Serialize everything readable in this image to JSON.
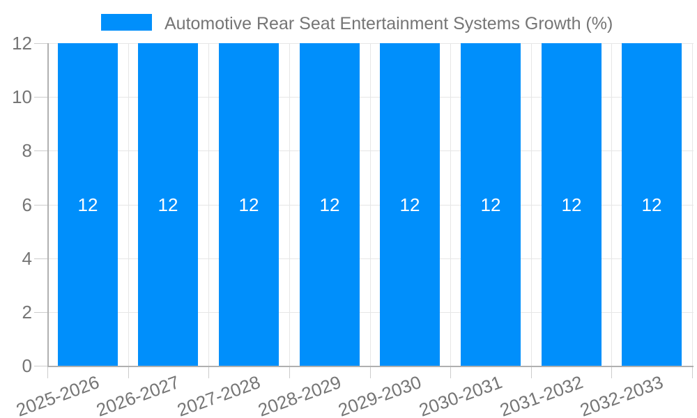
{
  "chart_data": {
    "type": "bar",
    "title": "Automotive Rear Seat Entertainment Systems Growth (%)",
    "categories": [
      "2025-2026",
      "2026-2027",
      "2027-2028",
      "2028-2029",
      "2029-2030",
      "2030-2031",
      "2031-2032",
      "2032-2033"
    ],
    "values": [
      12,
      12,
      12,
      12,
      12,
      12,
      12,
      12
    ],
    "bar_labels": [
      "12",
      "12",
      "12",
      "12",
      "12",
      "12",
      "12",
      "12"
    ],
    "xlabel": "",
    "ylabel": "",
    "ylim": [
      0,
      12
    ],
    "yticks": [
      0,
      2,
      4,
      6,
      8,
      10,
      12
    ],
    "ytick_labels": [
      "0",
      "2",
      "4",
      "6",
      "8",
      "10",
      "12"
    ],
    "grid": true,
    "legend_position": "top",
    "colors": {
      "bar": "#008ffb",
      "gridline": "#e6e6e6",
      "axis_line": "#b0b0b0",
      "tick": "#cccccc",
      "axis_label": "#757575",
      "title": "#757575",
      "bar_label": "#ffffff",
      "background": "#ffffff"
    }
  }
}
